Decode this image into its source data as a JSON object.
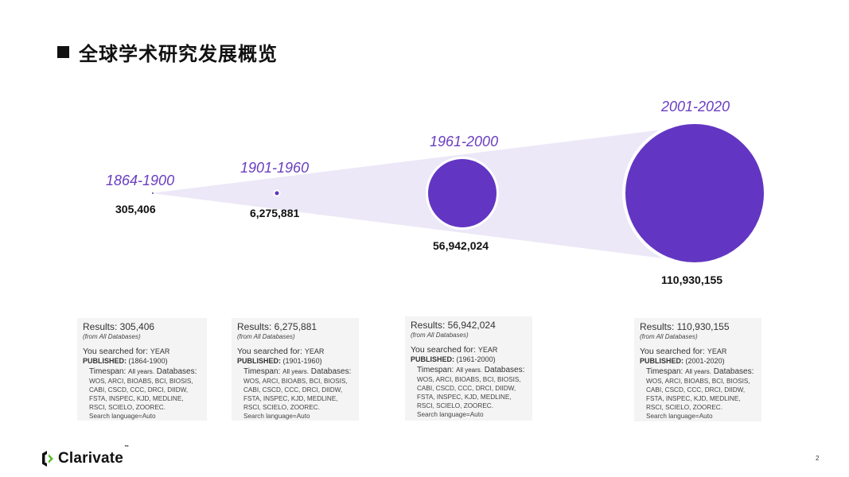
{
  "slide": {
    "title": "全球学术研究发展概览",
    "page_number": "2"
  },
  "brand": {
    "logo_text": "Clarivate",
    "trademark": "™"
  },
  "colors": {
    "accent": "#6a3ec0",
    "circle_fill": "#6236c2",
    "cone_fill": "#ece8f7"
  },
  "periods": [
    {
      "label": "1864-1900",
      "count": "305,406",
      "value": 305406
    },
    {
      "label": "1901-1960",
      "count": "6,275,881",
      "value": 6275881
    },
    {
      "label": "1961-2000",
      "count": "56,942,024",
      "value": 56942024
    },
    {
      "label": "2001-2020",
      "count": "110,930,155",
      "value": 110930155
    }
  ],
  "cards": [
    {
      "results": "Results: 305,406",
      "from": "(from All Databases)",
      "searched_prefix": "You searched for: ",
      "searched_field": "YEAR",
      "published_label": "PUBLISHED:",
      "published_value": "(1864-1900)",
      "timespan_label": "Timespan:",
      "timespan_value": "All years.",
      "databases_label": "Databases:",
      "databases_list": "WOS, ARCI, BIOABS, BCI, BIOSIS, CABI, CSCD, CCC, DRCI, DIIDW, FSTA, INSPEC, KJD, MEDLINE, RSCI, SCIELO, ZOOREC.",
      "search_language": "Search language=Auto"
    },
    {
      "results": "Results: 6,275,881",
      "from": "(from All Databases)",
      "searched_prefix": "You searched for: ",
      "searched_field": "YEAR",
      "published_label": "PUBLISHED:",
      "published_value": "(1901-1960)",
      "timespan_label": "Timespan:",
      "timespan_value": "All years.",
      "databases_label": "Databases:",
      "databases_list": "WOS, ARCI, BIOABS, BCI, BIOSIS, CABI, CSCD, CCC, DRCI, DIIDW, FSTA, INSPEC, KJD, MEDLINE, RSCI, SCIELO, ZOOREC.",
      "search_language": "Search language=Auto"
    },
    {
      "results": "Results: 56,942,024",
      "from": "(from All Databases)",
      "searched_prefix": "You searched for: ",
      "searched_field": "YEAR",
      "published_label": "PUBLISHED:",
      "published_value": "(1961-2000)",
      "timespan_label": "Timespan:",
      "timespan_value": "All years.",
      "databases_label": "Databases:",
      "databases_list": "WOS, ARCI, BIOABS, BCI, BIOSIS, CABI, CSCD, CCC, DRCI, DIIDW, FSTA, INSPEC, KJD, MEDLINE, RSCI, SCIELO, ZOOREC.",
      "search_language": "Search language=Auto"
    },
    {
      "results": "Results: 110,930,155",
      "from": "(from All Databases)",
      "searched_prefix": "You searched for: ",
      "searched_field": "YEAR",
      "published_label": "PUBLISHED:",
      "published_value": "(2001-2020)",
      "timespan_label": "Timespan:",
      "timespan_value": "All years.",
      "databases_label": "Databases:",
      "databases_list": "WOS, ARCI, BIOABS, BCI, BIOSIS, CABI, CSCD, CCC, DRCI, DIIDW, FSTA, INSPEC, KJD, MEDLINE, RSCI, SCIELO, ZOOREC.",
      "search_language": "Search language=Auto"
    }
  ]
}
